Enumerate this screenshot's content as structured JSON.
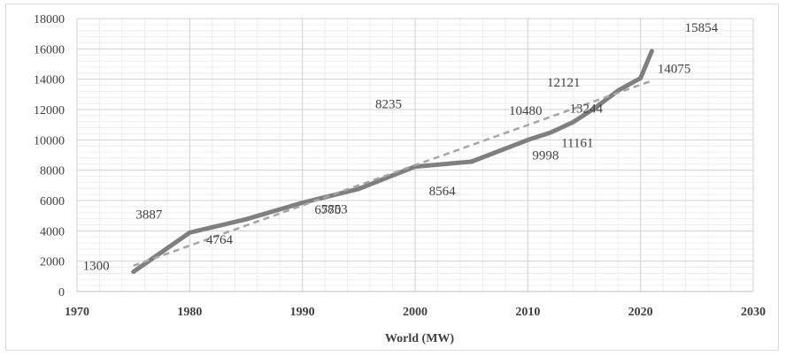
{
  "chart_data": {
    "type": "line",
    "title": "",
    "xlabel": "World (MW)",
    "ylabel": "",
    "xlim": [
      1970,
      2030
    ],
    "ylim": [
      0,
      18000
    ],
    "x_ticks": [
      "1970",
      "1980",
      "1990",
      "2000",
      "2010",
      "2020",
      "2030"
    ],
    "y_ticks": [
      "0",
      "2000",
      "4000",
      "6000",
      "8000",
      "10000",
      "12000",
      "14000",
      "16000",
      "18000"
    ],
    "grid": true,
    "legend": "none",
    "series": [
      {
        "style": "solid",
        "color": "#7f7f7f",
        "points": [
          {
            "x": 1975,
            "y": 1300
          },
          {
            "x": 1980,
            "y": 3887
          },
          {
            "x": 1985,
            "y": 4764
          },
          {
            "x": 1990,
            "y": 5853
          },
          {
            "x": 1995,
            "y": 6770
          },
          {
            "x": 2000,
            "y": 8235
          },
          {
            "x": 2005,
            "y": 8564
          },
          {
            "x": 2010,
            "y": 9998
          },
          {
            "x": 2012,
            "y": 10480
          },
          {
            "x": 2014,
            "y": 11161
          },
          {
            "x": 2016,
            "y": 12121
          },
          {
            "x": 2018,
            "y": 13244
          },
          {
            "x": 2020,
            "y": 14075
          },
          {
            "x": 2021,
            "y": 15854
          }
        ]
      },
      {
        "style": "dashed-trendline",
        "color": "#a6a6a6",
        "points": [
          {
            "x": 1975,
            "y": 1700
          },
          {
            "x": 2021,
            "y": 13900
          }
        ]
      }
    ],
    "data_labels": [
      "1300",
      "3887",
      "4764",
      "5853",
      "6770",
      "8235",
      "8564",
      "9998",
      "10480",
      "11161",
      "12121",
      "13244",
      "14075",
      "15854"
    ]
  }
}
